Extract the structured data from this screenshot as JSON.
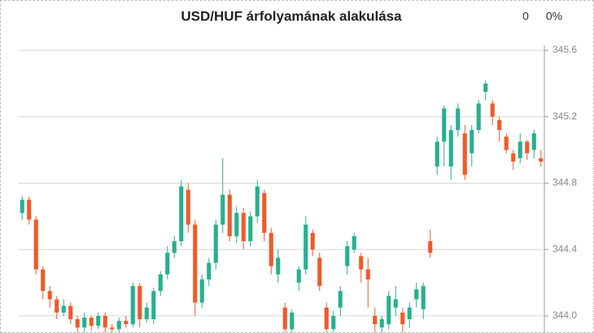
{
  "chart_data": {
    "type": "candlestick",
    "title": "USD/HUF árfolyamának alakulása",
    "change": "0",
    "change_percent": "0%",
    "up_color": "#26b08f",
    "down_color": "#f05a28",
    "ylim": [
      343.892,
      345.6
    ],
    "yticks": [
      {
        "value": 344,
        "label": "344.0"
      },
      344.4,
      344.8,
      345.2,
      345.6
    ],
    "grid": true,
    "open": [
      344.62,
      344.7,
      344.58,
      344.28,
      344.15,
      344.1,
      344.02,
      344.06,
      343.98,
      343.93,
      343.99,
      343.94,
      344.0,
      343.93,
      343.92,
      343.97,
      343.95,
      344.18,
      343.98,
      343.98,
      344.15,
      344.25,
      344.38,
      344.45,
      344.76,
      344.55,
      344.08,
      344.22,
      344.32,
      344.55,
      344.73,
      344.48,
      344.62,
      344.45,
      344.6,
      344.74,
      344.5,
      344.25,
      344.05,
      343.92,
      344.2,
      344.28,
      344.5,
      344.35,
      344.05,
      343.92,
      344.05,
      344.3,
      344.4,
      344.36,
      344.28,
      344.0,
      343.93,
      343.95,
      344.05,
      344.02,
      343.98,
      344.1,
      344.04,
      344.45,
      344.9,
      345.05,
      344.9,
      345.12,
      345.1,
      344.98,
      345.12,
      345.35,
      345.28,
      345.18,
      345.08,
      344.98,
      344.95,
      345.05,
      345.0,
      344.95
    ],
    "close": [
      344.7,
      344.58,
      344.28,
      344.15,
      344.1,
      344.02,
      344.06,
      343.98,
      343.93,
      343.99,
      343.94,
      344.0,
      343.93,
      343.92,
      343.97,
      343.95,
      344.18,
      343.98,
      344.05,
      344.15,
      344.25,
      344.38,
      344.45,
      344.78,
      344.55,
      344.08,
      344.22,
      344.32,
      344.55,
      344.73,
      344.48,
      344.62,
      344.45,
      344.6,
      344.78,
      344.5,
      344.3,
      344.35,
      343.92,
      344.02,
      344.28,
      344.55,
      344.4,
      344.18,
      343.92,
      344.0,
      344.15,
      344.42,
      344.48,
      344.28,
      344.22,
      343.95,
      343.98,
      344.12,
      344.1,
      343.95,
      344.05,
      344.16,
      344.18,
      344.38,
      345.05,
      345.25,
      345.12,
      345.25,
      344.85,
      345.12,
      345.28,
      345.4,
      345.2,
      345.12,
      345.0,
      344.93,
      345.05,
      344.98,
      345.1,
      344.93
    ],
    "high": [
      344.72,
      344.72,
      344.6,
      344.3,
      344.18,
      344.12,
      344.1,
      344.08,
      344.0,
      344.02,
      344.0,
      344.02,
      344.02,
      343.95,
      343.99,
      344.0,
      344.2,
      344.2,
      344.08,
      344.17,
      344.27,
      344.42,
      344.48,
      344.82,
      344.8,
      344.58,
      344.25,
      344.35,
      344.58,
      344.95,
      344.76,
      344.66,
      344.65,
      344.63,
      344.82,
      344.76,
      344.53,
      344.4,
      344.08,
      344.04,
      344.3,
      344.6,
      344.52,
      344.38,
      344.08,
      344.03,
      344.18,
      344.45,
      344.5,
      344.38,
      344.35,
      344.05,
      344.0,
      344.15,
      344.18,
      344.05,
      344.08,
      344.2,
      344.2,
      344.52,
      345.08,
      345.27,
      345.15,
      345.28,
      345.15,
      345.15,
      345.3,
      345.42,
      345.3,
      345.2,
      345.1,
      345.0,
      345.1,
      345.06,
      345.12,
      345.0
    ],
    "low": [
      344.58,
      344.55,
      344.25,
      344.1,
      344.05,
      343.98,
      344.0,
      343.95,
      343.9,
      343.9,
      343.91,
      343.92,
      343.9,
      343.9,
      343.9,
      343.93,
      343.93,
      343.93,
      343.96,
      343.95,
      344.12,
      344.22,
      344.35,
      344.42,
      344.5,
      344.0,
      344.05,
      344.18,
      344.28,
      344.5,
      344.45,
      344.44,
      344.4,
      344.42,
      344.56,
      344.45,
      344.25,
      344.2,
      343.9,
      343.9,
      344.15,
      344.25,
      344.36,
      344.15,
      343.89,
      343.9,
      344.0,
      344.25,
      344.38,
      344.2,
      344.05,
      343.9,
      343.9,
      343.92,
      344.0,
      343.9,
      343.93,
      344.05,
      343.98,
      344.35,
      344.85,
      344.9,
      344.82,
      345.08,
      344.82,
      344.9,
      345.1,
      345.3,
      345.15,
      345.05,
      344.98,
      344.88,
      344.92,
      344.94,
      344.95,
      344.9
    ]
  }
}
